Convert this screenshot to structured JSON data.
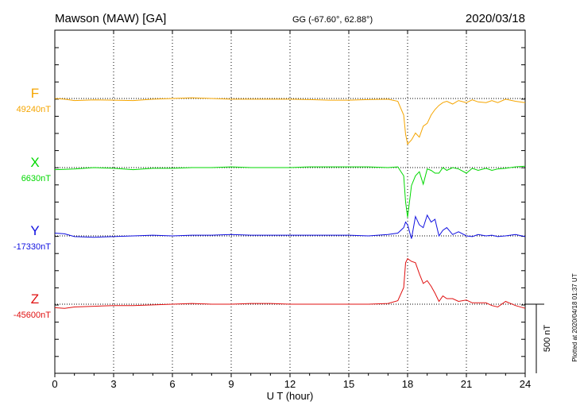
{
  "header": {
    "station": "Mawson (MAW)  [GA]",
    "coords": "GG (-67.60°,  62.88°)",
    "date": "2020/03/18"
  },
  "footer": {
    "plotted": "Plotted at 2020/04/18 01:37 UT"
  },
  "chart_data": {
    "type": "line",
    "xlabel": "U T (hour)",
    "xlim": [
      0,
      24
    ],
    "x_ticks": [
      0,
      3,
      6,
      9,
      12,
      15,
      18,
      21,
      24
    ],
    "x_tick_labels": [
      "0",
      "3",
      "6",
      "9",
      "12",
      "15",
      "18",
      "21",
      "24"
    ],
    "scale_bar": {
      "value_nT": 500,
      "label": "500 nT"
    },
    "grid": true,
    "series": [
      {
        "name": "F",
        "baseline_label": "49240nT",
        "color": "#f5a500",
        "points": [
          [
            0,
            0
          ],
          [
            0.5,
            -5
          ],
          [
            1,
            -15
          ],
          [
            2,
            -10
          ],
          [
            3,
            -12
          ],
          [
            4,
            -15
          ],
          [
            5,
            -5
          ],
          [
            6,
            0
          ],
          [
            7,
            5
          ],
          [
            8,
            0
          ],
          [
            9,
            -5
          ],
          [
            10,
            -5
          ],
          [
            11,
            -5
          ],
          [
            12,
            -5
          ],
          [
            13,
            -8
          ],
          [
            14,
            -12
          ],
          [
            15,
            -12
          ],
          [
            16,
            -8
          ],
          [
            17,
            -5
          ],
          [
            17.5,
            -20
          ],
          [
            17.8,
            -120
          ],
          [
            17.9,
            -260
          ],
          [
            18,
            -330
          ],
          [
            18.2,
            -300
          ],
          [
            18.4,
            -250
          ],
          [
            18.6,
            -280
          ],
          [
            18.8,
            -200
          ],
          [
            19,
            -180
          ],
          [
            19.2,
            -120
          ],
          [
            19.4,
            -80
          ],
          [
            19.6,
            -50
          ],
          [
            19.8,
            -30
          ],
          [
            20,
            -20
          ],
          [
            20.3,
            -40
          ],
          [
            20.6,
            -15
          ],
          [
            21,
            -30
          ],
          [
            21.3,
            -10
          ],
          [
            21.6,
            -25
          ],
          [
            22,
            -30
          ],
          [
            22.3,
            -15
          ],
          [
            22.6,
            -30
          ],
          [
            23,
            -5
          ],
          [
            23.5,
            -20
          ],
          [
            24,
            -30
          ]
        ]
      },
      {
        "name": "X",
        "baseline_label": "6630nT",
        "color": "#00d800",
        "points": [
          [
            0,
            -15
          ],
          [
            1,
            -10
          ],
          [
            2,
            0
          ],
          [
            3,
            -5
          ],
          [
            4,
            -15
          ],
          [
            5,
            -5
          ],
          [
            6,
            -5
          ],
          [
            7,
            0
          ],
          [
            8,
            0
          ],
          [
            9,
            5
          ],
          [
            10,
            0
          ],
          [
            11,
            0
          ],
          [
            12,
            0
          ],
          [
            13,
            5
          ],
          [
            14,
            5
          ],
          [
            15,
            5
          ],
          [
            16,
            5
          ],
          [
            17,
            0
          ],
          [
            17.5,
            5
          ],
          [
            17.8,
            -60
          ],
          [
            17.9,
            -250
          ],
          [
            18,
            -360
          ],
          [
            18.2,
            -130
          ],
          [
            18.4,
            -60
          ],
          [
            18.6,
            -30
          ],
          [
            18.8,
            -120
          ],
          [
            19,
            -10
          ],
          [
            19.2,
            -20
          ],
          [
            19.4,
            -40
          ],
          [
            19.6,
            -40
          ],
          [
            19.8,
            0
          ],
          [
            20,
            -20
          ],
          [
            20.3,
            0
          ],
          [
            20.6,
            -10
          ],
          [
            21,
            -40
          ],
          [
            21.3,
            -5
          ],
          [
            21.6,
            -20
          ],
          [
            22,
            -5
          ],
          [
            22.3,
            -20
          ],
          [
            22.6,
            -10
          ],
          [
            23,
            -5
          ],
          [
            23.5,
            5
          ],
          [
            24,
            10
          ]
        ]
      },
      {
        "name": "Y",
        "baseline_label": "-17330nT",
        "color": "#1010e0",
        "points": [
          [
            0,
            20
          ],
          [
            0.5,
            15
          ],
          [
            1,
            -5
          ],
          [
            2,
            -10
          ],
          [
            3,
            -5
          ],
          [
            4,
            0
          ],
          [
            5,
            5
          ],
          [
            6,
            0
          ],
          [
            7,
            5
          ],
          [
            8,
            5
          ],
          [
            9,
            10
          ],
          [
            10,
            5
          ],
          [
            11,
            5
          ],
          [
            12,
            5
          ],
          [
            13,
            5
          ],
          [
            14,
            5
          ],
          [
            15,
            5
          ],
          [
            16,
            0
          ],
          [
            17,
            10
          ],
          [
            17.5,
            20
          ],
          [
            17.8,
            60
          ],
          [
            17.9,
            100
          ],
          [
            18,
            80
          ],
          [
            18.2,
            -20
          ],
          [
            18.4,
            140
          ],
          [
            18.6,
            80
          ],
          [
            18.8,
            60
          ],
          [
            19,
            150
          ],
          [
            19.2,
            100
          ],
          [
            19.4,
            120
          ],
          [
            19.6,
            0
          ],
          [
            19.8,
            40
          ],
          [
            20,
            60
          ],
          [
            20.3,
            10
          ],
          [
            20.6,
            30
          ],
          [
            21,
            0
          ],
          [
            21.3,
            -5
          ],
          [
            21.6,
            10
          ],
          [
            22,
            0
          ],
          [
            22.3,
            5
          ],
          [
            22.6,
            -5
          ],
          [
            23,
            0
          ],
          [
            23.5,
            10
          ],
          [
            24,
            -5
          ]
        ]
      },
      {
        "name": "Z",
        "baseline_label": "-45600nT",
        "color": "#e01010",
        "points": [
          [
            0,
            -25
          ],
          [
            0.5,
            -30
          ],
          [
            1,
            -20
          ],
          [
            2,
            -15
          ],
          [
            3,
            -10
          ],
          [
            4,
            -10
          ],
          [
            5,
            -5
          ],
          [
            6,
            0
          ],
          [
            7,
            5
          ],
          [
            8,
            0
          ],
          [
            9,
            0
          ],
          [
            10,
            5
          ],
          [
            11,
            5
          ],
          [
            12,
            0
          ],
          [
            13,
            0
          ],
          [
            14,
            0
          ],
          [
            15,
            0
          ],
          [
            16,
            0
          ],
          [
            17,
            5
          ],
          [
            17.5,
            25
          ],
          [
            17.8,
            120
          ],
          [
            17.9,
            300
          ],
          [
            18,
            330
          ],
          [
            18.2,
            310
          ],
          [
            18.4,
            300
          ],
          [
            18.6,
            220
          ],
          [
            18.8,
            150
          ],
          [
            19,
            170
          ],
          [
            19.2,
            130
          ],
          [
            19.4,
            80
          ],
          [
            19.6,
            20
          ],
          [
            19.8,
            60
          ],
          [
            20,
            40
          ],
          [
            20.3,
            40
          ],
          [
            20.6,
            20
          ],
          [
            21,
            30
          ],
          [
            21.3,
            10
          ],
          [
            21.6,
            10
          ],
          [
            22,
            10
          ],
          [
            22.3,
            -10
          ],
          [
            22.6,
            -20
          ],
          [
            23,
            20
          ],
          [
            23.5,
            -10
          ],
          [
            24,
            -30
          ]
        ]
      }
    ]
  }
}
